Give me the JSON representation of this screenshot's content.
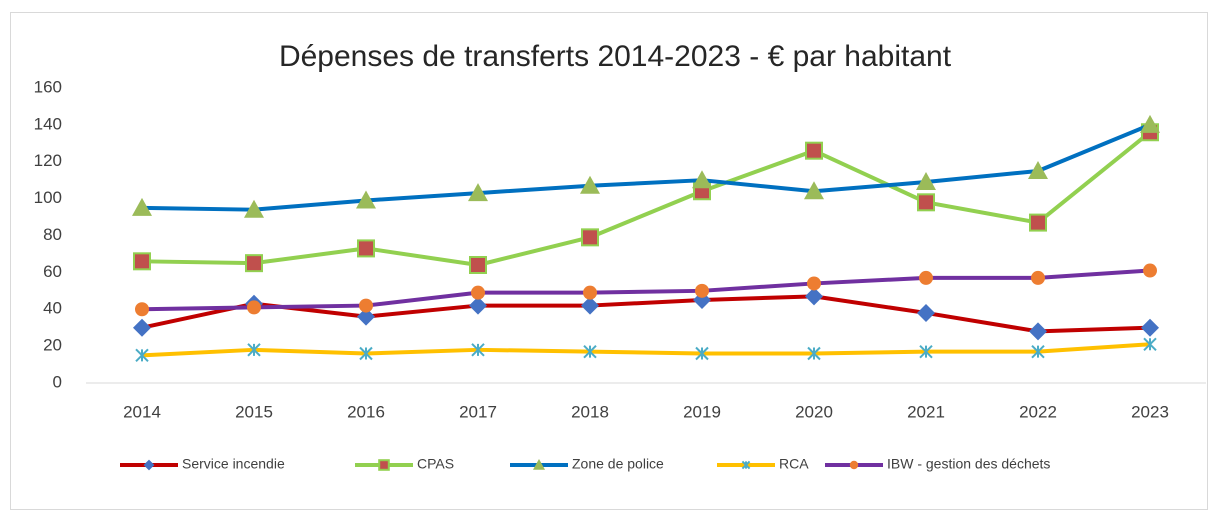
{
  "chart_data": {
    "type": "line",
    "title": "Dépenses de transferts 2014-2023  - € par habitant",
    "categories": [
      "2014",
      "2015",
      "2016",
      "2017",
      "2018",
      "2019",
      "2020",
      "2021",
      "2022",
      "2023"
    ],
    "series": [
      {
        "name": "Service incendie",
        "color": "#c00000",
        "marker": "diamond",
        "marker_color": "#4472c4",
        "values": [
          30,
          43,
          36,
          42,
          42,
          45,
          47,
          38,
          28,
          30
        ]
      },
      {
        "name": "CPAS",
        "color": "#92d050",
        "marker": "square",
        "marker_color": "#c0504d",
        "values": [
          66,
          65,
          73,
          64,
          79,
          104,
          126,
          98,
          87,
          136
        ]
      },
      {
        "name": "Zone de police",
        "color": "#0070c0",
        "marker": "triangle",
        "marker_color": "#9bbb59",
        "values": [
          95,
          94,
          99,
          103,
          107,
          110,
          104,
          109,
          115,
          140
        ]
      },
      {
        "name": "RCA",
        "color": "#ffc000",
        "marker": "star",
        "marker_color": "#4bacc6",
        "values": [
          15,
          18,
          16,
          18,
          17,
          16,
          16,
          17,
          17,
          21
        ]
      },
      {
        "name": "IBW - gestion des déchets",
        "color": "#7030a0",
        "marker": "circle",
        "marker_color": "#ed7d31",
        "values": [
          40,
          41,
          42,
          49,
          49,
          50,
          54,
          57,
          57,
          61
        ]
      }
    ],
    "ylim": [
      0,
      160
    ],
    "yticks": [
      0,
      20,
      40,
      60,
      80,
      100,
      120,
      140,
      160
    ],
    "grid": false,
    "legend": "bottom"
  }
}
